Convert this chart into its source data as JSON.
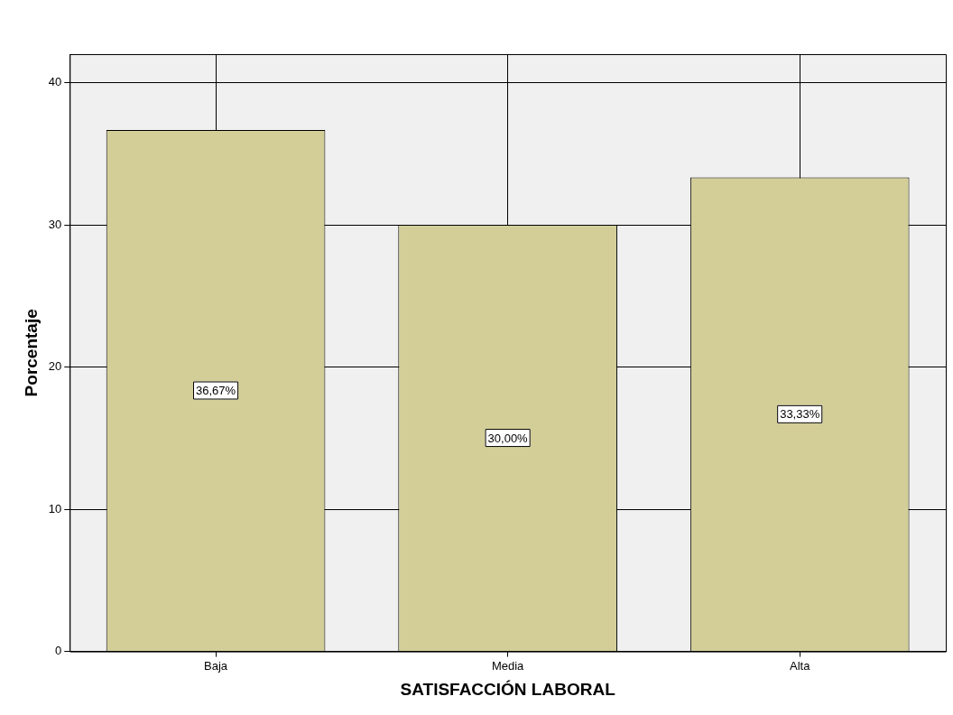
{
  "chart_data": {
    "type": "bar",
    "xlabel": "SATISFACCIÓN LABORAL",
    "ylabel": "Porcentaje",
    "categories": [
      "Baja",
      "Media",
      "Alta"
    ],
    "values": [
      36.67,
      30.0,
      33.33
    ],
    "value_labels": [
      "36,67%",
      "30,00%",
      "33,33%"
    ],
    "color": "#d3ce98",
    "ylim": [
      0,
      42
    ],
    "yticks": [
      0,
      10,
      20,
      30,
      40
    ],
    "grid": true
  }
}
